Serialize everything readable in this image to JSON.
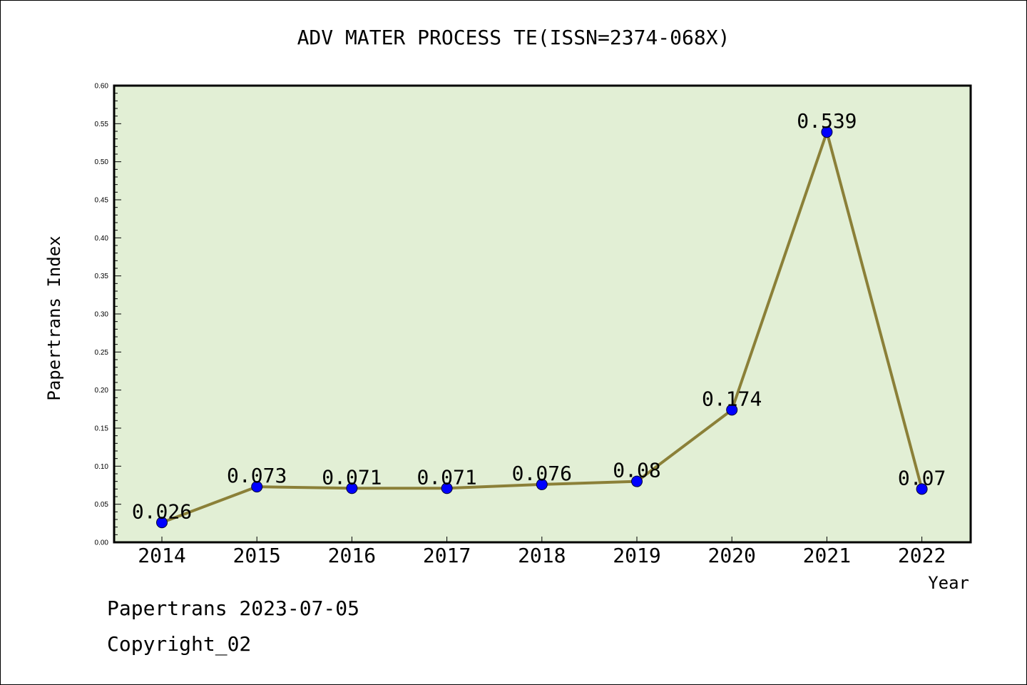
{
  "chart_data": {
    "type": "line",
    "title": "ADV MATER PROCESS TE(ISSN=2374-068X)",
    "xlabel": "Year",
    "ylabel": "Papertrans Index",
    "categories": [
      "2014",
      "2015",
      "2016",
      "2017",
      "2018",
      "2019",
      "2020",
      "2021",
      "2022"
    ],
    "values": [
      0.026,
      0.073,
      0.071,
      0.071,
      0.076,
      0.08,
      0.174,
      0.539,
      0.07
    ],
    "data_labels": [
      "0.026",
      "0.073",
      "0.071",
      "0.071",
      "0.076",
      "0.08",
      "0.174",
      "0.539",
      "0.07"
    ],
    "ylim": [
      0,
      0.6
    ],
    "yticks": [
      "0.00",
      "0.05",
      "0.10",
      "0.15",
      "0.20",
      "0.25",
      "0.30",
      "0.35",
      "0.40",
      "0.45",
      "0.50",
      "0.55",
      "0.60"
    ],
    "grid": false,
    "legend": "none",
    "colors": {
      "plot_background": "#e2efd5",
      "line": "#8b8038",
      "marker": "#0000ff"
    }
  },
  "footer": {
    "line1": "Papertrans 2023-07-05",
    "line2": "Copyright_02"
  }
}
